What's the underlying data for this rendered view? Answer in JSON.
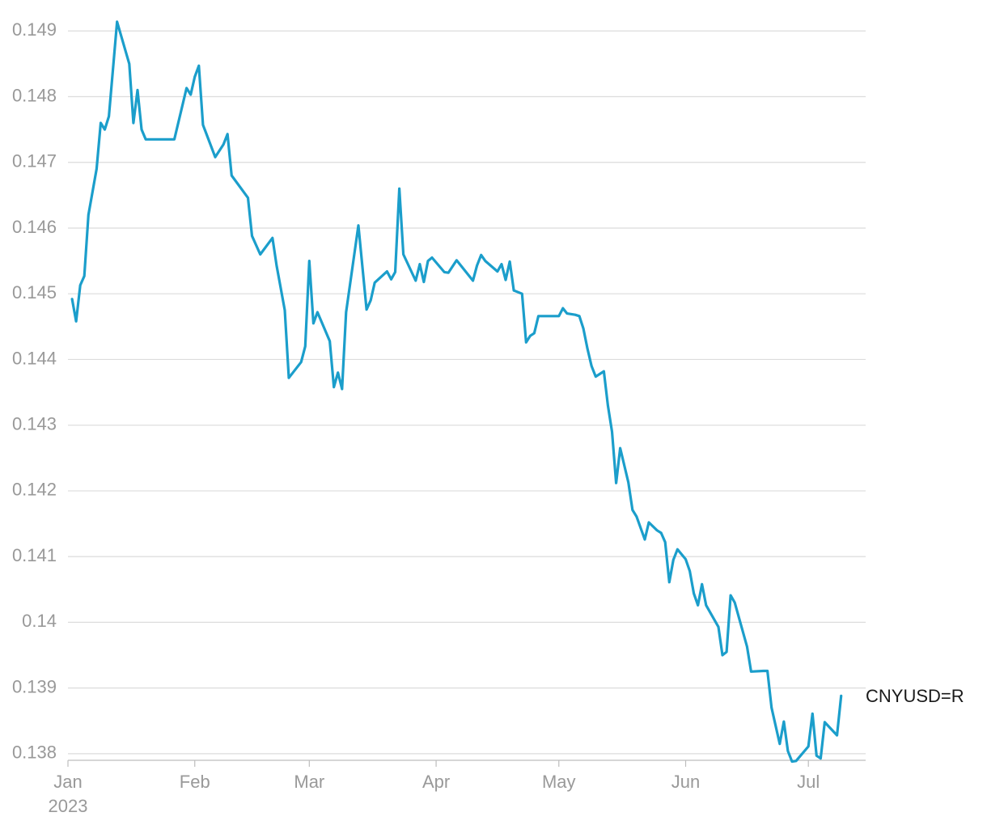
{
  "chart_data": {
    "type": "line",
    "title": "",
    "xlabel": "",
    "ylabel": "",
    "x_range": [
      "2023-01-01",
      "2023-07-15"
    ],
    "ylim": [
      0.1379,
      0.1492
    ],
    "y_ticks": [
      {
        "value": 0.138,
        "label": "0.138"
      },
      {
        "value": 0.139,
        "label": "0.139"
      },
      {
        "value": 0.14,
        "label": "0.14"
      },
      {
        "value": 0.141,
        "label": "0.141"
      },
      {
        "value": 0.142,
        "label": "0.142"
      },
      {
        "value": 0.143,
        "label": "0.143"
      },
      {
        "value": 0.144,
        "label": "0.144"
      },
      {
        "value": 0.145,
        "label": "0.145"
      },
      {
        "value": 0.146,
        "label": "0.146"
      },
      {
        "value": 0.147,
        "label": "0.147"
      },
      {
        "value": 0.148,
        "label": "0.148"
      },
      {
        "value": 0.149,
        "label": "0.149"
      }
    ],
    "x_ticks": [
      {
        "date": "2023-01-01",
        "label": "Jan",
        "sublabel": "2023"
      },
      {
        "date": "2023-02-01",
        "label": "Feb"
      },
      {
        "date": "2023-03-01",
        "label": "Mar"
      },
      {
        "date": "2023-04-01",
        "label": "Apr"
      },
      {
        "date": "2023-05-01",
        "label": "May"
      },
      {
        "date": "2023-06-01",
        "label": "Jun"
      },
      {
        "date": "2023-07-01",
        "label": "Jul"
      }
    ],
    "grid": true,
    "legend": "end-of-line label",
    "series": [
      {
        "name": "CNYUSD=R",
        "color": "#1b9ecb",
        "points": [
          [
            "2023-01-02",
            0.14492
          ],
          [
            "2023-01-03",
            0.14458
          ],
          [
            "2023-01-04",
            0.14513
          ],
          [
            "2023-01-05",
            0.14527
          ],
          [
            "2023-01-06",
            0.1462
          ],
          [
            "2023-01-08",
            0.1469
          ],
          [
            "2023-01-09",
            0.1476
          ],
          [
            "2023-01-10",
            0.1475
          ],
          [
            "2023-01-11",
            0.1477
          ],
          [
            "2023-01-13",
            0.14914
          ],
          [
            "2023-01-16",
            0.1485
          ],
          [
            "2023-01-17",
            0.1476
          ],
          [
            "2023-01-18",
            0.1481
          ],
          [
            "2023-01-19",
            0.1475
          ],
          [
            "2023-01-20",
            0.14735
          ],
          [
            "2023-01-27",
            0.14735
          ],
          [
            "2023-01-30",
            0.14813
          ],
          [
            "2023-01-31",
            0.14803
          ],
          [
            "2023-02-01",
            0.1483
          ],
          [
            "2023-02-02",
            0.14847
          ],
          [
            "2023-02-03",
            0.14757
          ],
          [
            "2023-02-06",
            0.14708
          ],
          [
            "2023-02-08",
            0.14727
          ],
          [
            "2023-02-09",
            0.14743
          ],
          [
            "2023-02-10",
            0.1468
          ],
          [
            "2023-02-14",
            0.14646
          ],
          [
            "2023-02-15",
            0.14588
          ],
          [
            "2023-02-17",
            0.1456
          ],
          [
            "2023-02-20",
            0.14585
          ],
          [
            "2023-02-21",
            0.14543
          ],
          [
            "2023-02-23",
            0.14475
          ],
          [
            "2023-02-24",
            0.14372
          ],
          [
            "2023-02-27",
            0.14396
          ],
          [
            "2023-02-28",
            0.1442
          ],
          [
            "2023-03-01",
            0.1455
          ],
          [
            "2023-03-02",
            0.14455
          ],
          [
            "2023-03-03",
            0.14472
          ],
          [
            "2023-03-06",
            0.14428
          ],
          [
            "2023-03-07",
            0.14358
          ],
          [
            "2023-03-08",
            0.1438
          ],
          [
            "2023-03-09",
            0.14355
          ],
          [
            "2023-03-10",
            0.14472
          ],
          [
            "2023-03-13",
            0.14604
          ],
          [
            "2023-03-15",
            0.14476
          ],
          [
            "2023-03-16",
            0.1449
          ],
          [
            "2023-03-17",
            0.14517
          ],
          [
            "2023-03-20",
            0.14534
          ],
          [
            "2023-03-21",
            0.14522
          ],
          [
            "2023-03-22",
            0.14533
          ],
          [
            "2023-03-23",
            0.1466
          ],
          [
            "2023-03-24",
            0.1456
          ],
          [
            "2023-03-27",
            0.1452
          ],
          [
            "2023-03-28",
            0.14545
          ],
          [
            "2023-03-29",
            0.14518
          ],
          [
            "2023-03-30",
            0.1455
          ],
          [
            "2023-03-31",
            0.14555
          ],
          [
            "2023-04-03",
            0.14533
          ],
          [
            "2023-04-04",
            0.14532
          ],
          [
            "2023-04-06",
            0.14551
          ],
          [
            "2023-04-10",
            0.1452
          ],
          [
            "2023-04-11",
            0.14543
          ],
          [
            "2023-04-12",
            0.14559
          ],
          [
            "2023-04-13",
            0.1455
          ],
          [
            "2023-04-16",
            0.14534
          ],
          [
            "2023-04-17",
            0.14545
          ],
          [
            "2023-04-18",
            0.14521
          ],
          [
            "2023-04-19",
            0.14549
          ],
          [
            "2023-04-20",
            0.14505
          ],
          [
            "2023-04-22",
            0.145
          ],
          [
            "2023-04-23",
            0.14426
          ],
          [
            "2023-04-24",
            0.14436
          ],
          [
            "2023-04-25",
            0.1444
          ],
          [
            "2023-04-26",
            0.14466
          ],
          [
            "2023-04-28",
            0.14466
          ],
          [
            "2023-05-01",
            0.14466
          ],
          [
            "2023-05-02",
            0.14478
          ],
          [
            "2023-05-03",
            0.1447
          ],
          [
            "2023-05-05",
            0.14468
          ],
          [
            "2023-05-06",
            0.14466
          ],
          [
            "2023-05-07",
            0.14447
          ],
          [
            "2023-05-08",
            0.14416
          ],
          [
            "2023-05-09",
            0.1439
          ],
          [
            "2023-05-10",
            0.14374
          ],
          [
            "2023-05-12",
            0.14382
          ],
          [
            "2023-05-13",
            0.1433
          ],
          [
            "2023-05-14",
            0.1429
          ],
          [
            "2023-05-15",
            0.14212
          ],
          [
            "2023-05-16",
            0.14265
          ],
          [
            "2023-05-18",
            0.14213
          ],
          [
            "2023-05-19",
            0.14171
          ],
          [
            "2023-05-20",
            0.14161
          ],
          [
            "2023-05-22",
            0.14126
          ],
          [
            "2023-05-23",
            0.14152
          ],
          [
            "2023-05-25",
            0.1414
          ],
          [
            "2023-05-26",
            0.14136
          ],
          [
            "2023-05-27",
            0.14122
          ],
          [
            "2023-05-28",
            0.14061
          ],
          [
            "2023-05-29",
            0.14095
          ],
          [
            "2023-05-30",
            0.14111
          ],
          [
            "2023-06-01",
            0.14096
          ],
          [
            "2023-06-02",
            0.14078
          ],
          [
            "2023-06-03",
            0.14044
          ],
          [
            "2023-06-04",
            0.14026
          ],
          [
            "2023-06-05",
            0.14058
          ],
          [
            "2023-06-06",
            0.14026
          ],
          [
            "2023-06-09",
            0.13993
          ],
          [
            "2023-06-10",
            0.1395
          ],
          [
            "2023-06-11",
            0.13955
          ],
          [
            "2023-06-12",
            0.14041
          ],
          [
            "2023-06-13",
            0.1403
          ],
          [
            "2023-06-16",
            0.13963
          ],
          [
            "2023-06-17",
            0.13925
          ],
          [
            "2023-06-20",
            0.13926
          ],
          [
            "2023-06-21",
            0.13926
          ],
          [
            "2023-06-22",
            0.1387
          ],
          [
            "2023-06-24",
            0.13815
          ],
          [
            "2023-06-25",
            0.13849
          ],
          [
            "2023-06-26",
            0.13804
          ],
          [
            "2023-06-27",
            0.13788
          ],
          [
            "2023-06-28",
            0.13789
          ],
          [
            "2023-07-01",
            0.13811
          ],
          [
            "2023-07-02",
            0.13861
          ],
          [
            "2023-07-03",
            0.13797
          ],
          [
            "2023-07-04",
            0.13793
          ],
          [
            "2023-07-05",
            0.13848
          ],
          [
            "2023-07-08",
            0.13828
          ],
          [
            "2023-07-09",
            0.13888
          ]
        ]
      }
    ]
  }
}
